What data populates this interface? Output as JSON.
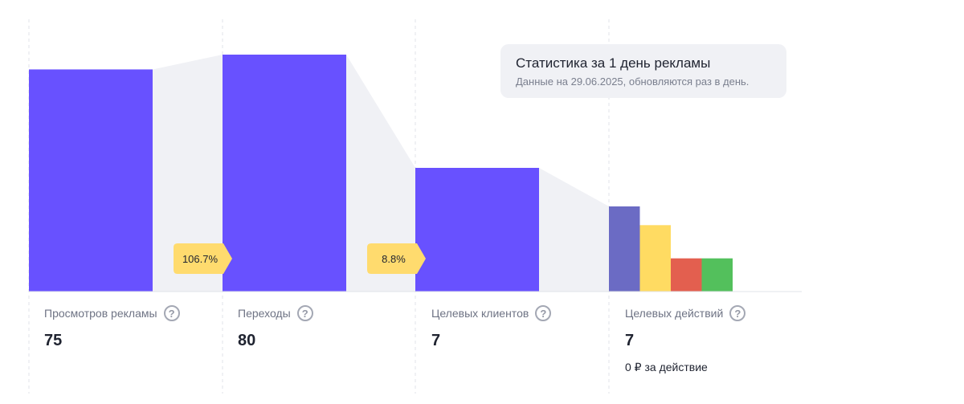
{
  "tooltip": {
    "title": "Статистика за 1 день рекламы",
    "subtitle": "Данные на 29.06.2025, обновляются раз в день."
  },
  "metrics": [
    {
      "label": "Просмотров рекламы",
      "value": "75"
    },
    {
      "label": "Переходы",
      "value": "80"
    },
    {
      "label": "Целевых клиентов",
      "value": "7"
    },
    {
      "label": "Целевых действий",
      "value": "7",
      "note": "0 ₽ за действие"
    }
  ],
  "help_glyph": "?",
  "conversion_badges": [
    "106.7%",
    "8.8%"
  ],
  "colors": {
    "bar": "#6851ff",
    "connector": "#f0f1f5",
    "badge": "#ffdb6e",
    "divider": "#e1e3e8",
    "actions": [
      "#6b6bc4",
      "#ffdb62",
      "#e35f4f",
      "#53c05c"
    ]
  },
  "chart_data": {
    "type": "bar",
    "categories": [
      "Просмотров рекламы",
      "Переходы",
      "Целевых клиентов",
      "Целевых действий"
    ],
    "values": [
      75,
      80,
      7,
      7
    ],
    "conversions": [
      "106.7%",
      "8.8%"
    ],
    "action_breakdown_relative": [
      1.0,
      0.78,
      0.39,
      0.39
    ]
  }
}
